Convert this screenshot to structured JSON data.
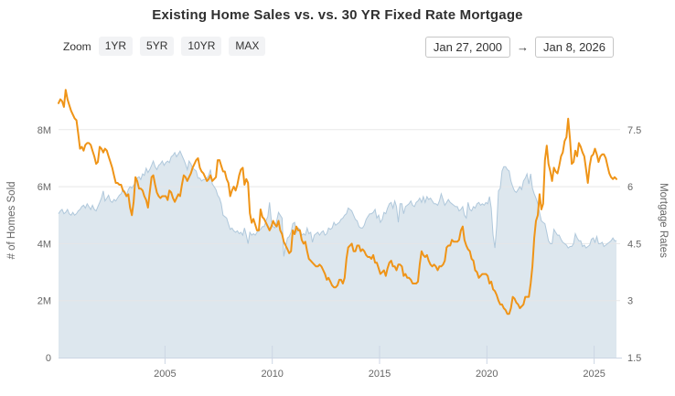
{
  "title": "Existing Home Sales vs. vs. 30 YR Fixed Rate Mortgage",
  "controls": {
    "zoom_label": "Zoom",
    "zoom_buttons": [
      "1YR",
      "5YR",
      "10YR",
      "MAX"
    ],
    "date_from": "Jan 27, 2000",
    "date_to": "Jan 8, 2026",
    "arrow": "→"
  },
  "colors": {
    "accent_orange": "#ef9417",
    "area_fill_visible": "#dde7ee",
    "area_fill_rgba": "rgba(193,211,224,0.55)",
    "area_edge_rgba": "rgba(168,195,216,0.9)",
    "grid": "#e6e6e6",
    "axis_line": "#ccd6e4",
    "tick_text": "#666666",
    "title_text": "#303030"
  },
  "chart_data": {
    "type": "area+line",
    "title": "Existing Home Sales vs. vs. 30 YR Fixed Rate Mortgage",
    "x_range": [
      2000.04,
      2026.04
    ],
    "x_ticks": [
      2005,
      2010,
      2015,
      2020,
      2025
    ],
    "grid_on": true,
    "legend": "none",
    "left_axis": {
      "title": "# of Homes Sold",
      "tick_labels": [
        "0",
        "2M",
        "4M",
        "6M",
        "8M"
      ],
      "tick_values": [
        0,
        2,
        4,
        6,
        8
      ],
      "min": 0,
      "max": 9.6
    },
    "right_axis": {
      "title": "Mortgage Rates",
      "tick_labels": [
        "1.5",
        "3",
        "4.5",
        "6",
        "7.5"
      ],
      "tick_values": [
        1.5,
        3,
        4.5,
        6,
        7.5
      ],
      "min": 1.5,
      "max": 8.7
    },
    "series": [
      {
        "name": "Existing Home Sales",
        "type": "area",
        "axis": "left",
        "units": "millions of homes, monthly from Jan 2000 to Jan 2026",
        "x_start": 2000.04,
        "x_step": 0.08333,
        "fill": "rgba(193,211,224,0.55)",
        "edge": "rgba(168,195,216,0.9)",
        "values": [
          5.05,
          5.15,
          5.2,
          5.05,
          5.1,
          5.2,
          5.05,
          5.0,
          5.1,
          5.0,
          5.05,
          5.15,
          5.2,
          5.3,
          5.35,
          5.25,
          5.4,
          5.3,
          5.2,
          5.35,
          5.2,
          5.15,
          5.3,
          5.45,
          5.6,
          5.85,
          5.5,
          5.6,
          5.7,
          5.5,
          5.45,
          5.55,
          5.5,
          5.6,
          5.7,
          5.75,
          5.9,
          5.85,
          5.7,
          5.9,
          6.0,
          5.95,
          6.05,
          6.15,
          6.3,
          6.35,
          6.25,
          6.45,
          6.4,
          6.65,
          6.5,
          6.6,
          6.75,
          6.9,
          6.7,
          6.6,
          6.75,
          6.8,
          6.9,
          6.75,
          6.85,
          6.9,
          6.85,
          7.05,
          7.1,
          7.2,
          7.05,
          7.15,
          7.25,
          7.1,
          6.95,
          6.8,
          6.6,
          6.9,
          6.8,
          6.65,
          6.6,
          6.55,
          6.3,
          6.3,
          6.2,
          6.25,
          6.25,
          6.3,
          6.4,
          6.6,
          6.1,
          6.0,
          5.9,
          5.7,
          5.6,
          5.4,
          5.0,
          4.95,
          4.9,
          4.7,
          4.5,
          4.55,
          4.45,
          4.4,
          4.45,
          4.35,
          4.4,
          4.3,
          4.55,
          4.3,
          4.0,
          4.4,
          4.3,
          4.35,
          4.3,
          4.4,
          4.45,
          4.5,
          4.6,
          4.6,
          4.8,
          4.95,
          5.45,
          4.8,
          4.6,
          4.55,
          4.8,
          5.1,
          5.0,
          4.9,
          3.55,
          3.9,
          4.2,
          4.25,
          4.4,
          4.7,
          4.75,
          4.4,
          4.55,
          4.5,
          4.3,
          4.35,
          4.3,
          4.55,
          4.35,
          4.4,
          4.05,
          4.3,
          4.35,
          4.4,
          4.3,
          4.4,
          4.45,
          4.3,
          4.35,
          4.55,
          4.5,
          4.55,
          4.75,
          4.65,
          4.7,
          4.75,
          4.85,
          4.9,
          5.0,
          5.05,
          5.25,
          5.2,
          5.15,
          5.0,
          4.85,
          4.8,
          4.6,
          4.55,
          4.55,
          4.65,
          4.85,
          4.95,
          5.05,
          5.05,
          5.1,
          5.2,
          4.9,
          5.0,
          4.75,
          4.85,
          5.1,
          5.05,
          5.25,
          5.4,
          5.45,
          5.25,
          5.5,
          5.3,
          4.75,
          5.4,
          5.4,
          5.05,
          5.3,
          5.35,
          5.4,
          5.5,
          5.35,
          5.3,
          5.45,
          5.5,
          5.6,
          5.45,
          5.65,
          5.45,
          5.65,
          5.55,
          5.6,
          5.5,
          5.4,
          5.4,
          5.35,
          5.5,
          5.75,
          5.55,
          5.35,
          5.45,
          5.55,
          5.45,
          5.4,
          5.35,
          5.3,
          5.3,
          5.15,
          5.2,
          5.3,
          5.0,
          4.9,
          5.45,
          5.2,
          5.15,
          5.3,
          5.25,
          5.4,
          5.45,
          5.35,
          5.4,
          5.35,
          5.45,
          5.4,
          5.65,
          5.25,
          4.3,
          3.85,
          4.6,
          5.85,
          5.95,
          6.55,
          6.7,
          6.7,
          6.6,
          6.55,
          6.2,
          6.0,
          5.85,
          5.8,
          5.9,
          6.0,
          5.9,
          6.2,
          6.3,
          6.45,
          6.1,
          6.45,
          5.95,
          5.75,
          5.6,
          5.4,
          5.1,
          4.8,
          4.75,
          4.7,
          4.4,
          4.1,
          4.0,
          4.0,
          4.5,
          4.4,
          4.3,
          4.3,
          4.15,
          4.05,
          4.0,
          3.95,
          3.85,
          3.9,
          3.9,
          4.0,
          4.35,
          4.2,
          4.1,
          4.1,
          3.9,
          3.95,
          3.85,
          3.9,
          3.95,
          4.15,
          4.2,
          4.05,
          4.25,
          4.0,
          4.0,
          4.05,
          3.9,
          3.95,
          4.0,
          4.05,
          4.1,
          4.2,
          4.1,
          4.1
        ]
      },
      {
        "name": "30 YR Fixed Rate Mortgage",
        "type": "line",
        "axis": "right",
        "units": "percent, monthly from Jan 2000 to Jan 2026",
        "x_start": 2000.04,
        "x_step": 0.08333,
        "color": "#ef9417",
        "values": [
          8.2,
          8.3,
          8.25,
          8.1,
          8.55,
          8.3,
          8.15,
          8.0,
          7.9,
          7.8,
          7.75,
          7.4,
          7.0,
          7.05,
          6.95,
          7.1,
          7.15,
          7.15,
          7.1,
          6.95,
          6.8,
          6.6,
          6.65,
          7.05,
          7.0,
          6.9,
          7.0,
          6.95,
          6.8,
          6.65,
          6.5,
          6.3,
          6.1,
          6.1,
          6.05,
          6.05,
          5.9,
          5.85,
          5.75,
          5.8,
          5.45,
          5.25,
          5.6,
          6.25,
          6.15,
          5.95,
          5.95,
          5.9,
          5.75,
          5.65,
          5.45,
          5.85,
          6.25,
          6.3,
          6.05,
          5.85,
          5.75,
          5.7,
          5.75,
          5.75,
          5.75,
          5.65,
          5.9,
          5.85,
          5.7,
          5.6,
          5.7,
          5.8,
          5.75,
          6.05,
          6.3,
          6.25,
          6.15,
          6.25,
          6.35,
          6.5,
          6.6,
          6.7,
          6.75,
          6.5,
          6.4,
          6.35,
          6.25,
          6.15,
          6.2,
          6.3,
          6.15,
          6.2,
          6.25,
          6.7,
          6.7,
          6.55,
          6.4,
          6.4,
          6.2,
          6.1,
          5.75,
          5.9,
          6.0,
          5.9,
          6.05,
          6.3,
          6.45,
          6.5,
          6.05,
          6.2,
          6.1,
          5.3,
          5.05,
          5.15,
          5.0,
          4.85,
          4.85,
          5.4,
          5.2,
          5.15,
          5.05,
          4.95,
          4.85,
          4.95,
          5.1,
          5.0,
          4.95,
          5.1,
          4.85,
          4.75,
          4.55,
          4.45,
          4.35,
          4.25,
          4.3,
          4.85,
          4.75,
          4.95,
          4.85,
          4.85,
          4.6,
          4.5,
          4.55,
          4.3,
          4.1,
          4.05,
          4.0,
          3.95,
          3.9,
          3.9,
          3.95,
          3.9,
          3.8,
          3.7,
          3.55,
          3.6,
          3.5,
          3.4,
          3.35,
          3.35,
          3.4,
          3.55,
          3.55,
          3.45,
          3.6,
          4.1,
          4.4,
          4.45,
          4.5,
          4.3,
          4.3,
          4.45,
          4.45,
          4.3,
          4.35,
          4.3,
          4.2,
          4.15,
          4.15,
          4.1,
          4.2,
          4.0,
          4.0,
          3.85,
          3.7,
          3.75,
          3.8,
          3.65,
          3.85,
          4.0,
          4.05,
          3.9,
          3.9,
          3.8,
          3.95,
          3.95,
          3.9,
          3.65,
          3.7,
          3.6,
          3.6,
          3.55,
          3.45,
          3.45,
          3.45,
          3.5,
          3.95,
          4.3,
          4.2,
          4.15,
          4.2,
          4.05,
          3.95,
          3.9,
          3.95,
          3.9,
          3.8,
          3.9,
          3.9,
          3.95,
          4.05,
          4.4,
          4.45,
          4.45,
          4.6,
          4.55,
          4.55,
          4.55,
          4.6,
          4.85,
          4.95,
          4.6,
          4.45,
          4.35,
          4.3,
          4.1,
          4.05,
          3.8,
          3.75,
          3.6,
          3.65,
          3.7,
          3.7,
          3.7,
          3.65,
          3.45,
          3.5,
          3.3,
          3.25,
          3.15,
          3.0,
          2.9,
          2.9,
          2.8,
          2.75,
          2.65,
          2.65,
          2.8,
          3.1,
          3.05,
          2.95,
          2.9,
          2.8,
          2.85,
          2.9,
          3.1,
          3.1,
          3.1,
          3.45,
          3.9,
          4.65,
          5.1,
          5.25,
          5.8,
          5.4,
          5.55,
          6.7,
          7.08,
          6.6,
          6.4,
          6.15,
          6.5,
          6.4,
          6.35,
          6.55,
          6.8,
          6.9,
          7.2,
          7.3,
          7.79,
          7.25,
          6.6,
          6.65,
          6.95,
          6.8,
          7.15,
          7.05,
          6.9,
          6.8,
          6.45,
          6.1,
          6.55,
          6.8,
          6.85,
          7.0,
          6.85,
          6.65,
          6.8,
          6.85,
          6.85,
          6.75,
          6.55,
          6.35,
          6.25,
          6.2,
          6.25,
          6.2
        ]
      }
    ]
  }
}
